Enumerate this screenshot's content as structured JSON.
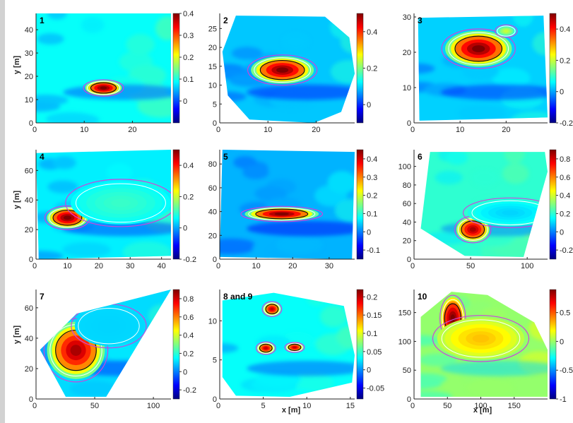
{
  "figure": {
    "colormap": "jet",
    "colors": {
      "contour_outer": "#cc44dd",
      "contour_mid": "#ffffff",
      "contour_inner": "#111111",
      "axis": "#222222",
      "jet": [
        "#00007f",
        "#0000ff",
        "#0080ff",
        "#00ffff",
        "#80ff80",
        "#ffff00",
        "#ff8000",
        "#ff0000",
        "#7f0000"
      ]
    },
    "y_axis_label": "y [m]",
    "x_axis_label": "x [m]"
  },
  "chart_data": [
    {
      "type": "heatmap",
      "title": "1",
      "xticks": [
        0,
        10,
        20
      ],
      "yticks": [
        0,
        10,
        20,
        30,
        40
      ],
      "xlim": [
        0,
        28
      ],
      "ylim": [
        0,
        47
      ],
      "colorbar": {
        "ticks": [
          0,
          0.1,
          0.2,
          0.3,
          0.4
        ],
        "labels": [
          "0",
          "0.1",
          "0.2",
          "0.3",
          "0.4"
        ],
        "range": [
          -0.1,
          0.4
        ]
      },
      "ylabel": "y [m]",
      "xlabel": "",
      "anomalies": [
        {
          "x": 14,
          "y": 15,
          "rx": 2.6,
          "ry": 2.2,
          "peak": 0.4
        }
      ]
    },
    {
      "type": "heatmap",
      "title": "2",
      "xticks": [
        0,
        10,
        20
      ],
      "yticks": [
        0,
        5,
        10,
        15,
        20,
        25
      ],
      "xlim": [
        0,
        28
      ],
      "ylim": [
        0,
        29
      ],
      "colorbar": {
        "ticks": [
          0,
          0.2,
          0.4
        ],
        "labels": [
          "0",
          "0.2",
          "0.4"
        ],
        "range": [
          -0.1,
          0.5
        ]
      },
      "ylabel": "",
      "xlabel": "",
      "anomalies": [
        {
          "x": 13,
          "y": 14,
          "rx": 4.5,
          "ry": 2.5,
          "peak": 0.5
        }
      ]
    },
    {
      "type": "heatmap",
      "title": "3",
      "xticks": [
        0,
        10,
        20
      ],
      "yticks": [
        0,
        10,
        20,
        30
      ],
      "xlim": [
        0,
        29
      ],
      "ylim": [
        0,
        31
      ],
      "colorbar": {
        "ticks": [
          -0.2,
          0,
          0.2,
          0.4
        ],
        "labels": [
          "-0.2",
          "0",
          "0.2",
          "0.4"
        ],
        "range": [
          -0.2,
          0.5
        ]
      },
      "ylabel": "",
      "xlabel": "",
      "anomalies": [
        {
          "x": 14,
          "y": 21,
          "rx": 5,
          "ry": 3.5,
          "peak": 0.5
        },
        {
          "x": 20,
          "y": 26,
          "rx": 1.5,
          "ry": 1.1,
          "peak": 0.2
        }
      ]
    },
    {
      "type": "heatmap",
      "title": "4",
      "xticks": [
        0,
        10,
        20,
        30,
        40
      ],
      "yticks": [
        0,
        20,
        40,
        60
      ],
      "xlim": [
        0,
        43
      ],
      "ylim": [
        0,
        74
      ],
      "colorbar": {
        "ticks": [
          -0.2,
          0,
          0.2,
          0.4
        ],
        "labels": [
          "-0.2",
          "0",
          "0.2",
          "0.4"
        ],
        "range": [
          -0.2,
          0.5
        ]
      },
      "ylabel": "y [m]",
      "xlabel": "",
      "anomalies": [
        {
          "x": 10,
          "y": 28,
          "rx": 4.5,
          "ry": 5,
          "peak": 0.5
        },
        {
          "x": 27,
          "y": 38,
          "rx": 11,
          "ry": 10,
          "peak": 0.1
        }
      ]
    },
    {
      "type": "heatmap",
      "title": "5",
      "xticks": [
        0,
        10,
        20,
        30
      ],
      "yticks": [
        0,
        20,
        40,
        60,
        80
      ],
      "xlim": [
        0,
        37
      ],
      "ylim": [
        0,
        92
      ],
      "colorbar": {
        "ticks": [
          -0.1,
          0,
          0.1,
          0.2,
          0.3,
          0.4
        ],
        "labels": [
          "-0.1",
          "0",
          "0.1",
          "0.2",
          "0.3",
          "0.4"
        ],
        "range": [
          -0.15,
          0.45
        ]
      },
      "ylabel": "",
      "xlabel": "",
      "anomalies": [
        {
          "x": 17,
          "y": 38,
          "rx": 7,
          "ry": 4,
          "peak": 0.45
        }
      ]
    },
    {
      "type": "heatmap",
      "title": "6",
      "xticks": [
        0,
        50,
        100
      ],
      "yticks": [
        0,
        20,
        40,
        60,
        80,
        100
      ],
      "xlim": [
        0,
        118
      ],
      "ylim": [
        0,
        118
      ],
      "colorbar": {
        "ticks": [
          -0.2,
          0,
          0.2,
          0.4,
          0.6,
          0.8
        ],
        "labels": [
          "-0.2",
          "0",
          "0.2",
          "0.4",
          "0.6",
          "0.8"
        ],
        "range": [
          -0.3,
          0.9
        ]
      },
      "ylabel": "",
      "xlabel": "",
      "anomalies": [
        {
          "x": 52,
          "y": 32,
          "rx": 10,
          "ry": 9,
          "peak": 0.85
        },
        {
          "x": 85,
          "y": 50,
          "rx": 26,
          "ry": 10,
          "peak": 0.1
        }
      ]
    },
    {
      "type": "heatmap",
      "title": "7",
      "xticks": [
        0,
        50,
        100
      ],
      "yticks": [
        0,
        20,
        40,
        60
      ],
      "xlim": [
        0,
        115
      ],
      "ylim": [
        0,
        72
      ],
      "colorbar": {
        "ticks": [
          -0.2,
          0,
          0.2,
          0.4,
          0.6,
          0.8
        ],
        "labels": [
          "-0.2",
          "0",
          "0.2",
          "0.4",
          "0.6",
          "0.8"
        ],
        "range": [
          -0.3,
          0.9
        ]
      },
      "ylabel": "y [m]",
      "xlabel": "",
      "anomalies": [
        {
          "x": 34,
          "y": 32,
          "rx": 17,
          "ry": 13,
          "peak": 0.85
        },
        {
          "x": 62,
          "y": 48,
          "rx": 20,
          "ry": 9,
          "peak": 0.1
        }
      ]
    },
    {
      "type": "heatmap",
      "title": "8 and 9",
      "xticks": [
        0,
        5,
        10,
        15
      ],
      "yticks": [
        0,
        5,
        10
      ],
      "xlim": [
        0,
        15.5
      ],
      "ylim": [
        0,
        14
      ],
      "colorbar": {
        "ticks": [
          -0.05,
          0,
          0.05,
          0.1,
          0.15,
          0.2
        ],
        "labels": [
          "-0.05",
          "0",
          "0.05",
          "0.1",
          "0.15",
          "0.2"
        ],
        "range": [
          -0.08,
          0.22
        ]
      },
      "ylabel": "",
      "xlabel": "x [m]",
      "anomalies": [
        {
          "x": 6,
          "y": 11.5,
          "rx": 0.7,
          "ry": 0.6,
          "peak": 0.2
        },
        {
          "x": 5.3,
          "y": 6.5,
          "rx": 0.7,
          "ry": 0.5,
          "peak": 0.2
        },
        {
          "x": 8.6,
          "y": 6.6,
          "rx": 0.7,
          "ry": 0.4,
          "peak": 0.2
        }
      ]
    },
    {
      "type": "heatmap",
      "title": "10",
      "xticks": [
        0,
        50,
        100,
        150
      ],
      "yticks": [
        0,
        50,
        100,
        150
      ],
      "xlim": [
        0,
        200
      ],
      "ylim": [
        0,
        190
      ],
      "colorbar": {
        "ticks": [
          -1,
          -0.5,
          0,
          0.5
        ],
        "labels": [
          "-1",
          "-0.5",
          "0",
          "0.5"
        ],
        "range": [
          -1,
          0.9
        ]
      },
      "ylabel": "",
      "xlabel": "x [m]",
      "anomalies": [
        {
          "x": 58,
          "y": 140,
          "rx": 12,
          "ry": 25,
          "peak": 0.9
        },
        {
          "x": 100,
          "y": 105,
          "rx": 45,
          "ry": 25,
          "peak": 0.3
        }
      ]
    }
  ]
}
